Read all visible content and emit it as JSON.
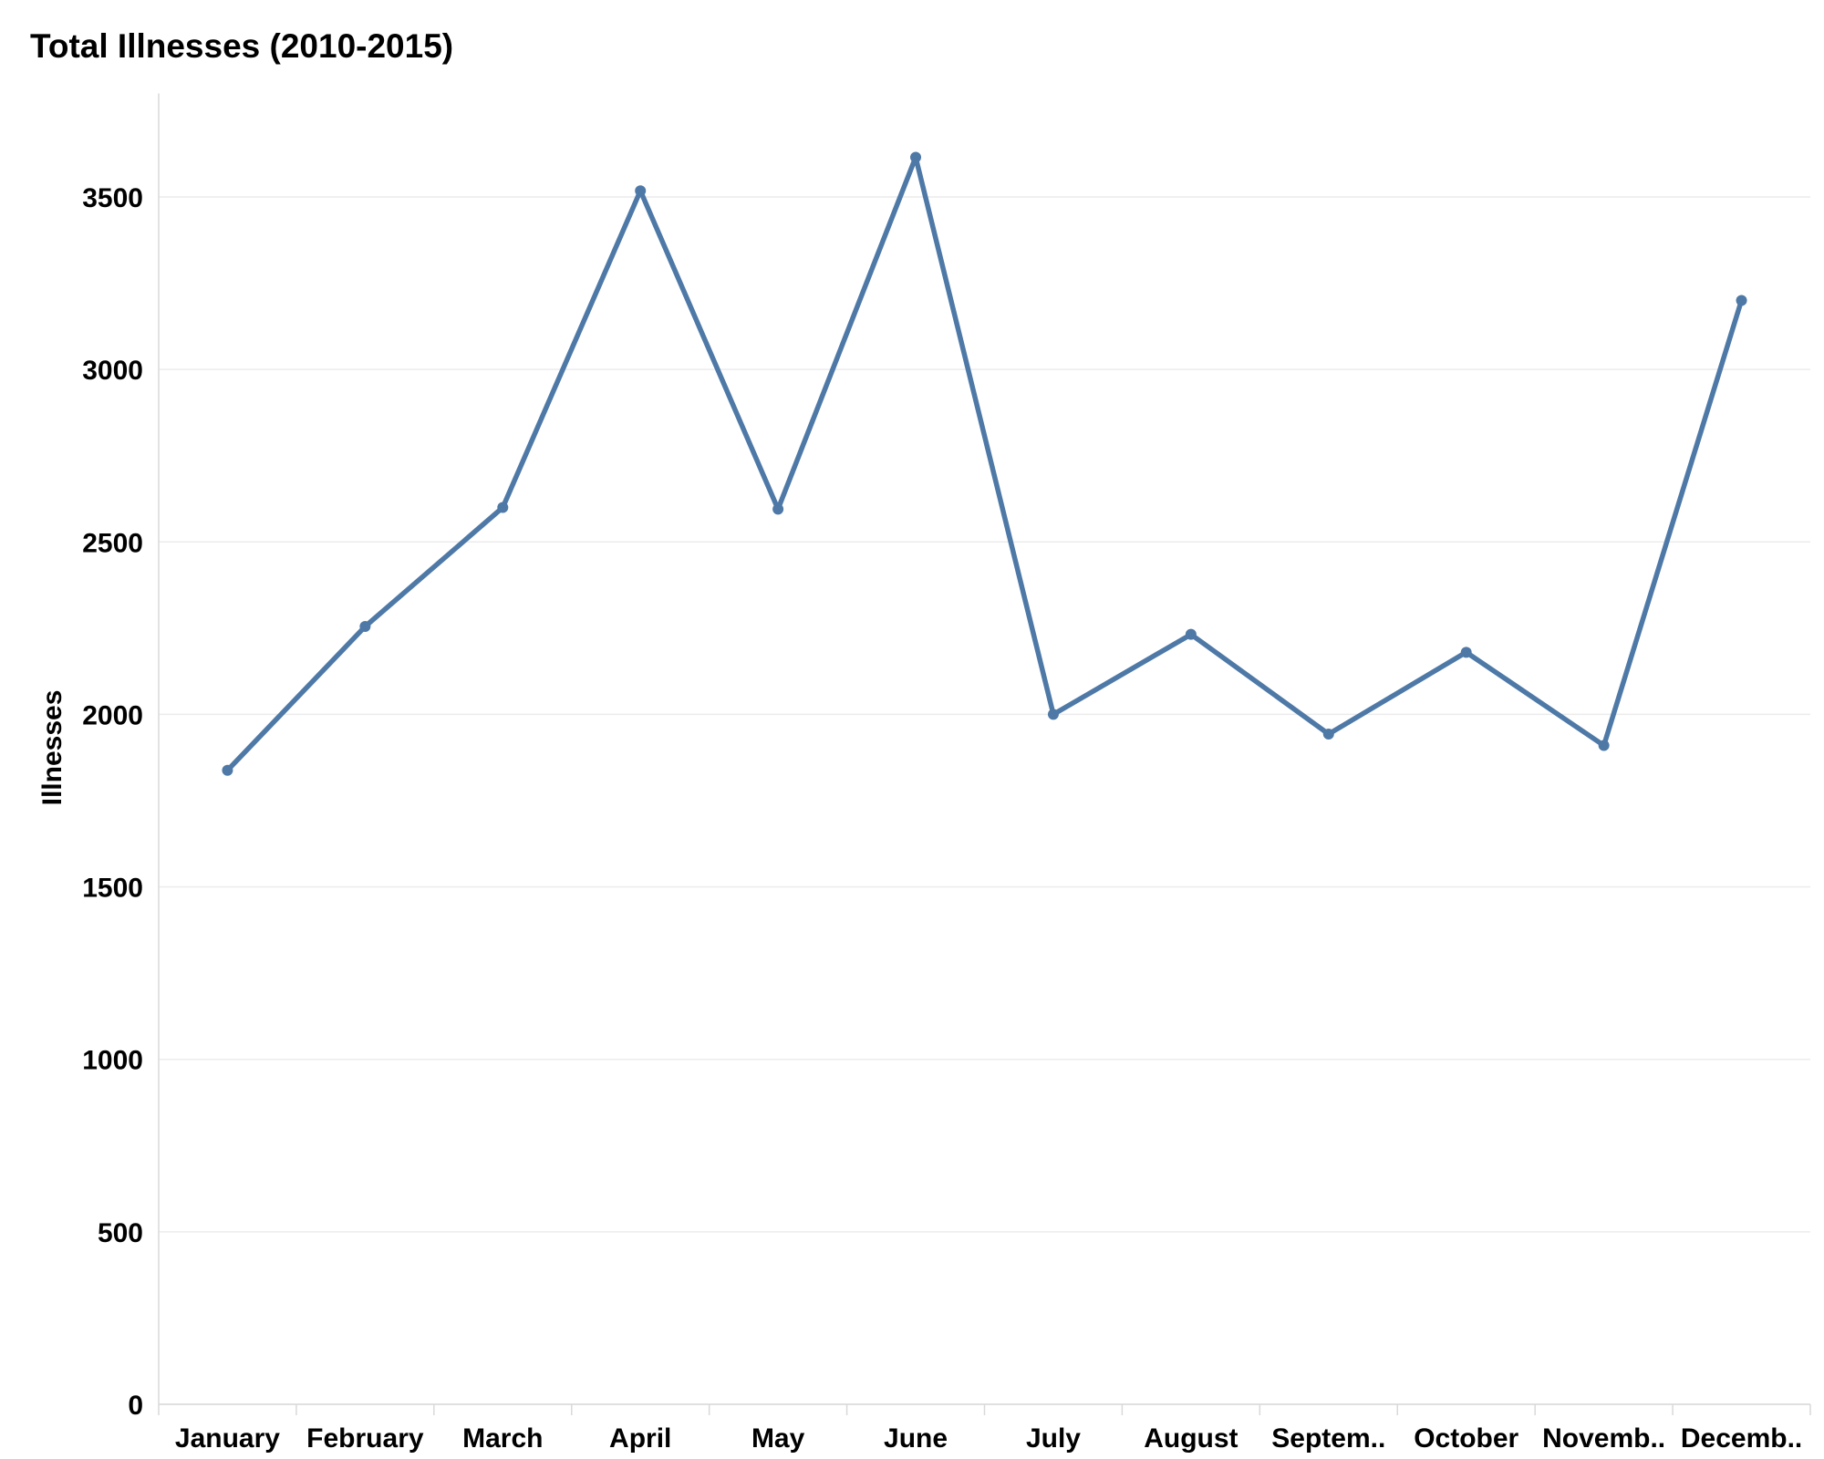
{
  "chart_data": {
    "type": "line",
    "title": "Total Illnesses (2010-2015)",
    "xlabel": "",
    "ylabel": "Illnesses",
    "categories": [
      "January",
      "February",
      "March",
      "April",
      "May",
      "June",
      "July",
      "August",
      "Septem..",
      "October",
      "Novemb..",
      "Decemb.."
    ],
    "series": [
      {
        "values": [
          1838,
          2255,
          2600,
          3518,
          2595,
          3615,
          2000,
          2232,
          1943,
          2180,
          1910,
          3200
        ]
      }
    ],
    "yticks": [
      0,
      500,
      1000,
      1500,
      2000,
      2500,
      3000,
      3500
    ],
    "ylim": [
      0,
      3800
    ],
    "grid": true,
    "line_color": "#4e79a7",
    "grid_color": "#ececec",
    "axis_color": "#d9d9d9"
  }
}
